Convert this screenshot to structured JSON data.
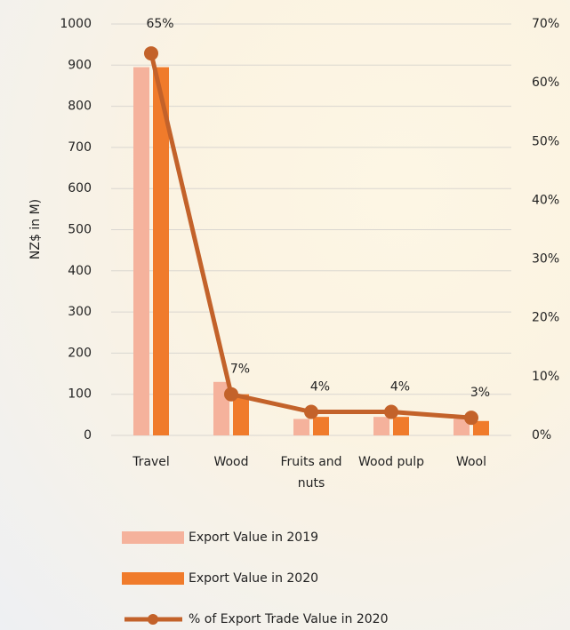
{
  "chart_data": {
    "type": "bar",
    "y_label": "NZ$ in M)",
    "categories": [
      "Travel",
      "Wood",
      "Fruits and nuts",
      "Wood pulp",
      "Wool"
    ],
    "series": [
      {
        "name": "Export Value in 2019",
        "color": "#f5b29c",
        "values": [
          895,
          130,
          40,
          45,
          40
        ]
      },
      {
        "name": "Export Value in 2020",
        "color": "#f07b2b",
        "values": [
          895,
          100,
          45,
          45,
          35
        ]
      },
      {
        "name": "% of Export Trade Value in 2020",
        "color": "#c3622a",
        "type": "line",
        "axis": "y2",
        "values": [
          65,
          7,
          4,
          4,
          3
        ],
        "value_labels": [
          "65%",
          "7%",
          "4%",
          "4%",
          "3%"
        ]
      }
    ],
    "ylim": [
      0,
      1000
    ],
    "yticks": [
      0,
      100,
      200,
      300,
      400,
      500,
      600,
      700,
      800,
      900,
      1000
    ],
    "y2lim": [
      0,
      70
    ],
    "y2ticks": [
      {
        "value": 0,
        "label": "0%"
      },
      {
        "value": 10,
        "label": "10%"
      },
      {
        "value": 20,
        "label": "20%"
      },
      {
        "value": 30,
        "label": "30%"
      },
      {
        "value": 40,
        "label": "40%"
      },
      {
        "value": 50,
        "label": "50%"
      },
      {
        "value": 60,
        "label": "60%"
      },
      {
        "value": 70,
        "label": "70%"
      }
    ],
    "grid": true
  }
}
